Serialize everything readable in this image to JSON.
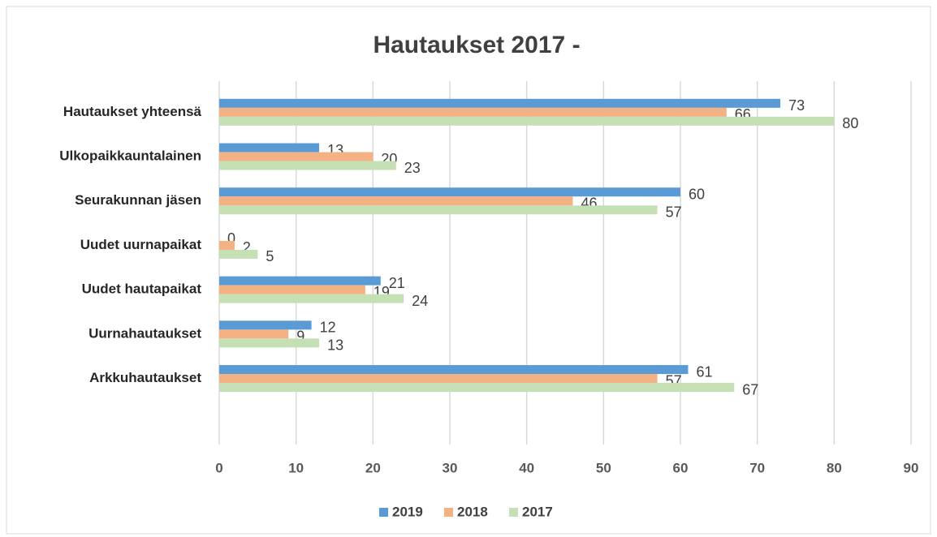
{
  "chart_data": {
    "type": "hbar",
    "title": "Hautaukset 2017 -",
    "categories": [
      "Hautaukset yhteensä",
      "Ulkopaikkauntalainen",
      "Seurakunnan jäsen",
      "Uudet uurnapaikat",
      "Uudet hautapaikat",
      "Uurnahautaukset",
      "Arkkuhautaukset"
    ],
    "series": [
      {
        "name": "2019",
        "color": "#5b9bd5",
        "values": [
          73,
          13,
          60,
          0,
          21,
          12,
          61
        ]
      },
      {
        "name": "2018",
        "color": "#f4b183",
        "values": [
          66,
          20,
          46,
          2,
          19,
          9,
          57
        ]
      },
      {
        "name": "2017",
        "color": "#c5e0b4",
        "values": [
          80,
          23,
          57,
          5,
          24,
          13,
          67
        ]
      }
    ],
    "xlim": [
      0,
      90
    ],
    "xticks": [
      0,
      10,
      20,
      30,
      40,
      50,
      60,
      70,
      80,
      90
    ],
    "grid": true,
    "legend": "bottom"
  }
}
